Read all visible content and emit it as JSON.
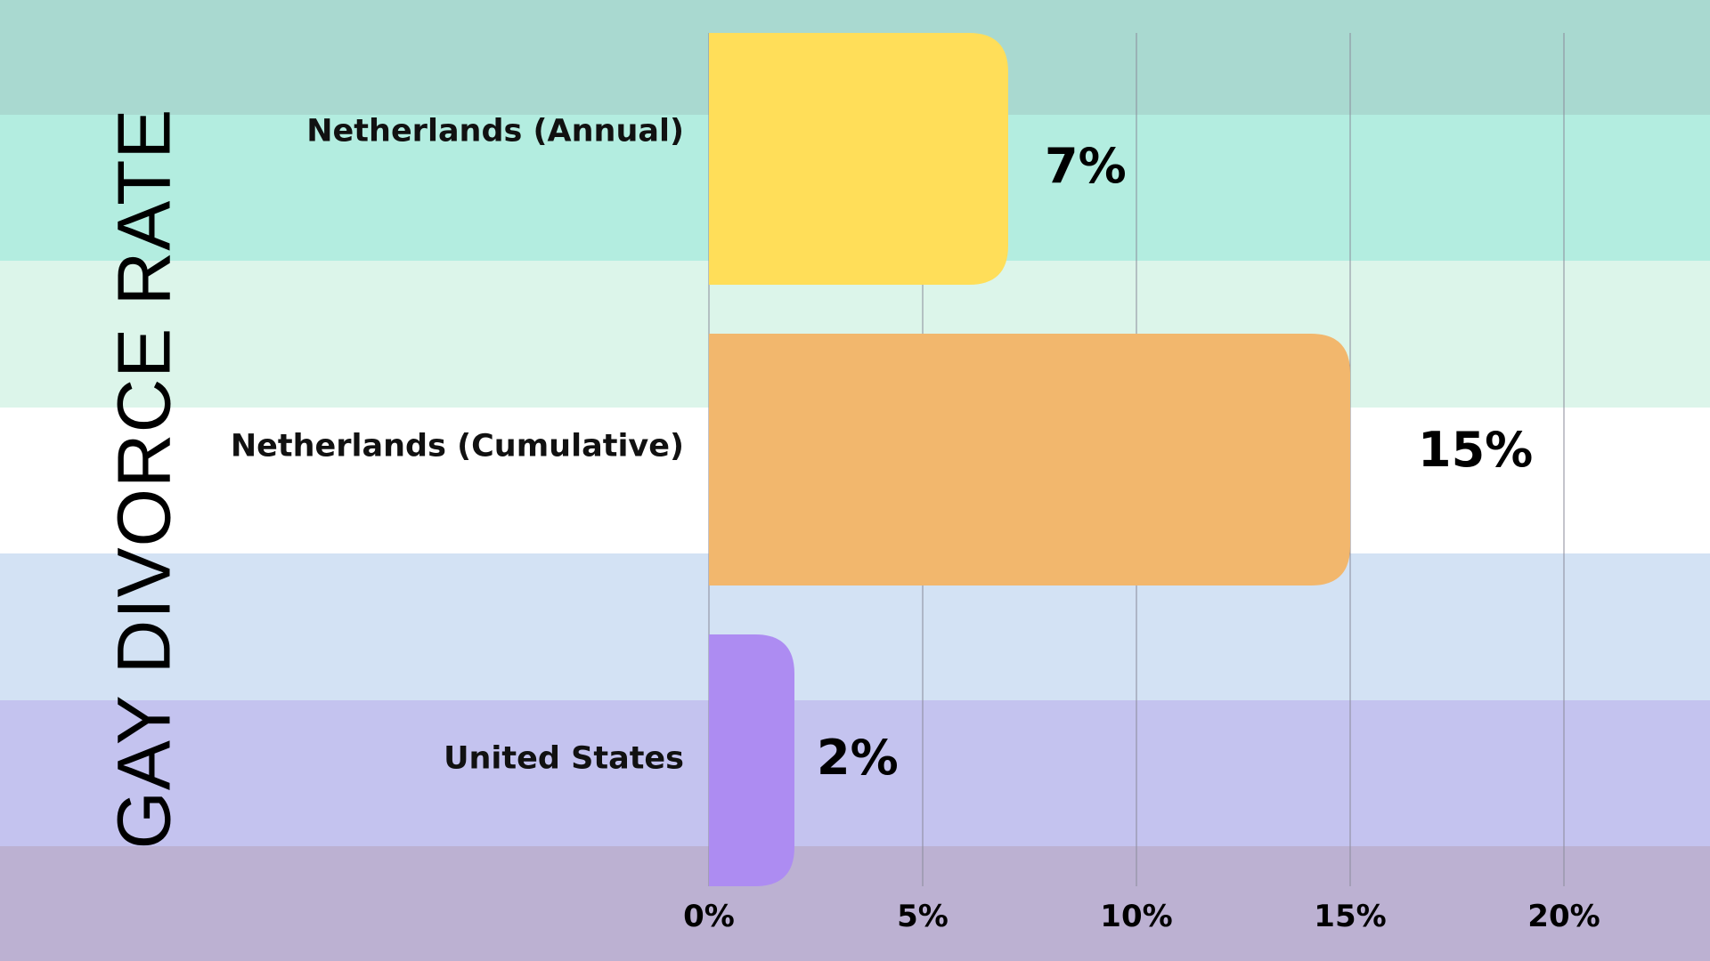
{
  "chart_data": {
    "type": "bar",
    "orientation": "horizontal",
    "title": "GAY DIVORCE RATE",
    "categories": [
      "Netherlands (Annual)",
      "Netherlands (Cumulative)",
      "United States"
    ],
    "values": [
      7,
      15,
      2
    ],
    "data_labels": [
      "7%",
      "15%",
      "2%"
    ],
    "bar_colors": [
      "#ffde59",
      "#f2b76d",
      "#ad8cf2"
    ],
    "xlim": [
      0,
      20
    ],
    "xticks": [
      0,
      5,
      10,
      15,
      20
    ],
    "xtick_labels": [
      "0%",
      "5%",
      "10%",
      "15%",
      "20%"
    ],
    "grid": "vertical",
    "background_bands": [
      "#a9d9d0",
      "#b3ede0",
      "#dcf5ea",
      "#ffffff",
      "#d3e2f4",
      "#c4c3ef",
      "#bcb1d2"
    ]
  }
}
